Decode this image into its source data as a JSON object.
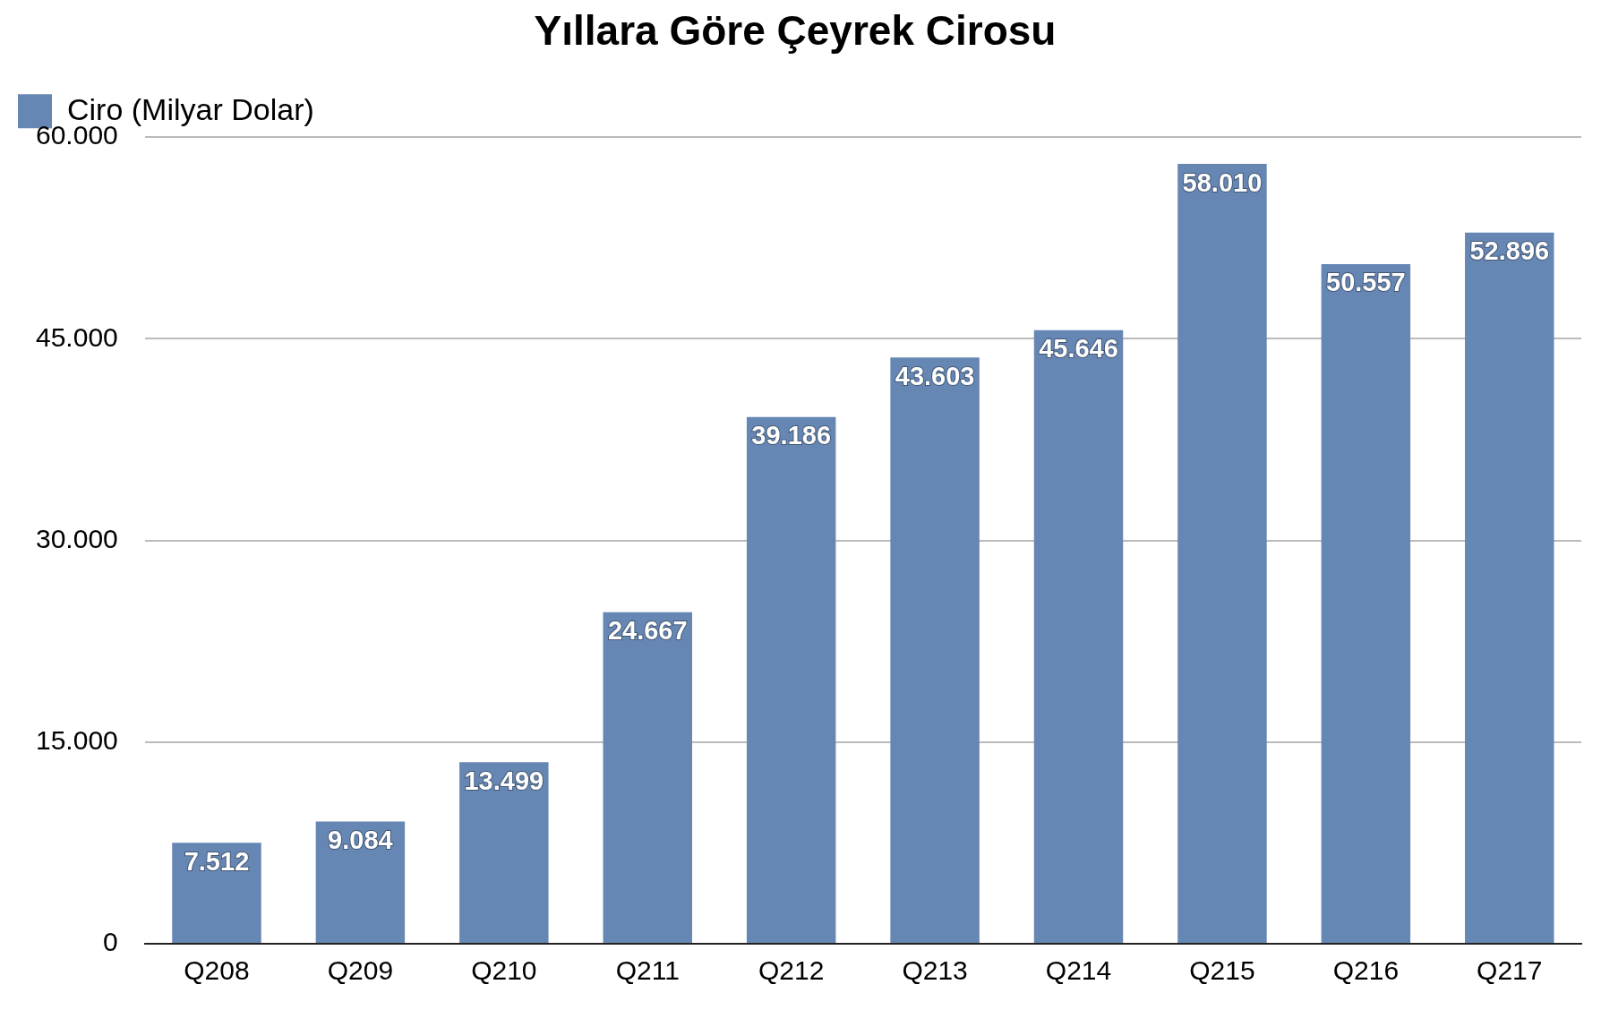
{
  "chart_data": {
    "type": "bar",
    "title": "Yıllara Göre Çeyrek Cirosu",
    "categories": [
      "Q208",
      "Q209",
      "Q210",
      "Q211",
      "Q212",
      "Q213",
      "Q214",
      "Q215",
      "Q216",
      "Q217"
    ],
    "series": [
      {
        "name": "Ciro (Milyar Dolar)",
        "color": "#6686b3",
        "values": [
          7512,
          9084,
          13499,
          24667,
          39186,
          43603,
          45646,
          58010,
          50557,
          52896
        ],
        "value_labels": [
          "7.512",
          "9.084",
          "13.499",
          "24.667",
          "39.186",
          "43.603",
          "45.646",
          "58.010",
          "50.557",
          "52.896"
        ]
      }
    ],
    "ylim": [
      0,
      60000
    ],
    "yticks": [
      {
        "value": 0,
        "label": "0"
      },
      {
        "value": 15000,
        "label": "15.000"
      },
      {
        "value": 30000,
        "label": "30.000"
      },
      {
        "value": 45000,
        "label": "45.000"
      },
      {
        "value": 60000,
        "label": "60.000"
      }
    ],
    "grid": "y",
    "legend": "top left"
  }
}
